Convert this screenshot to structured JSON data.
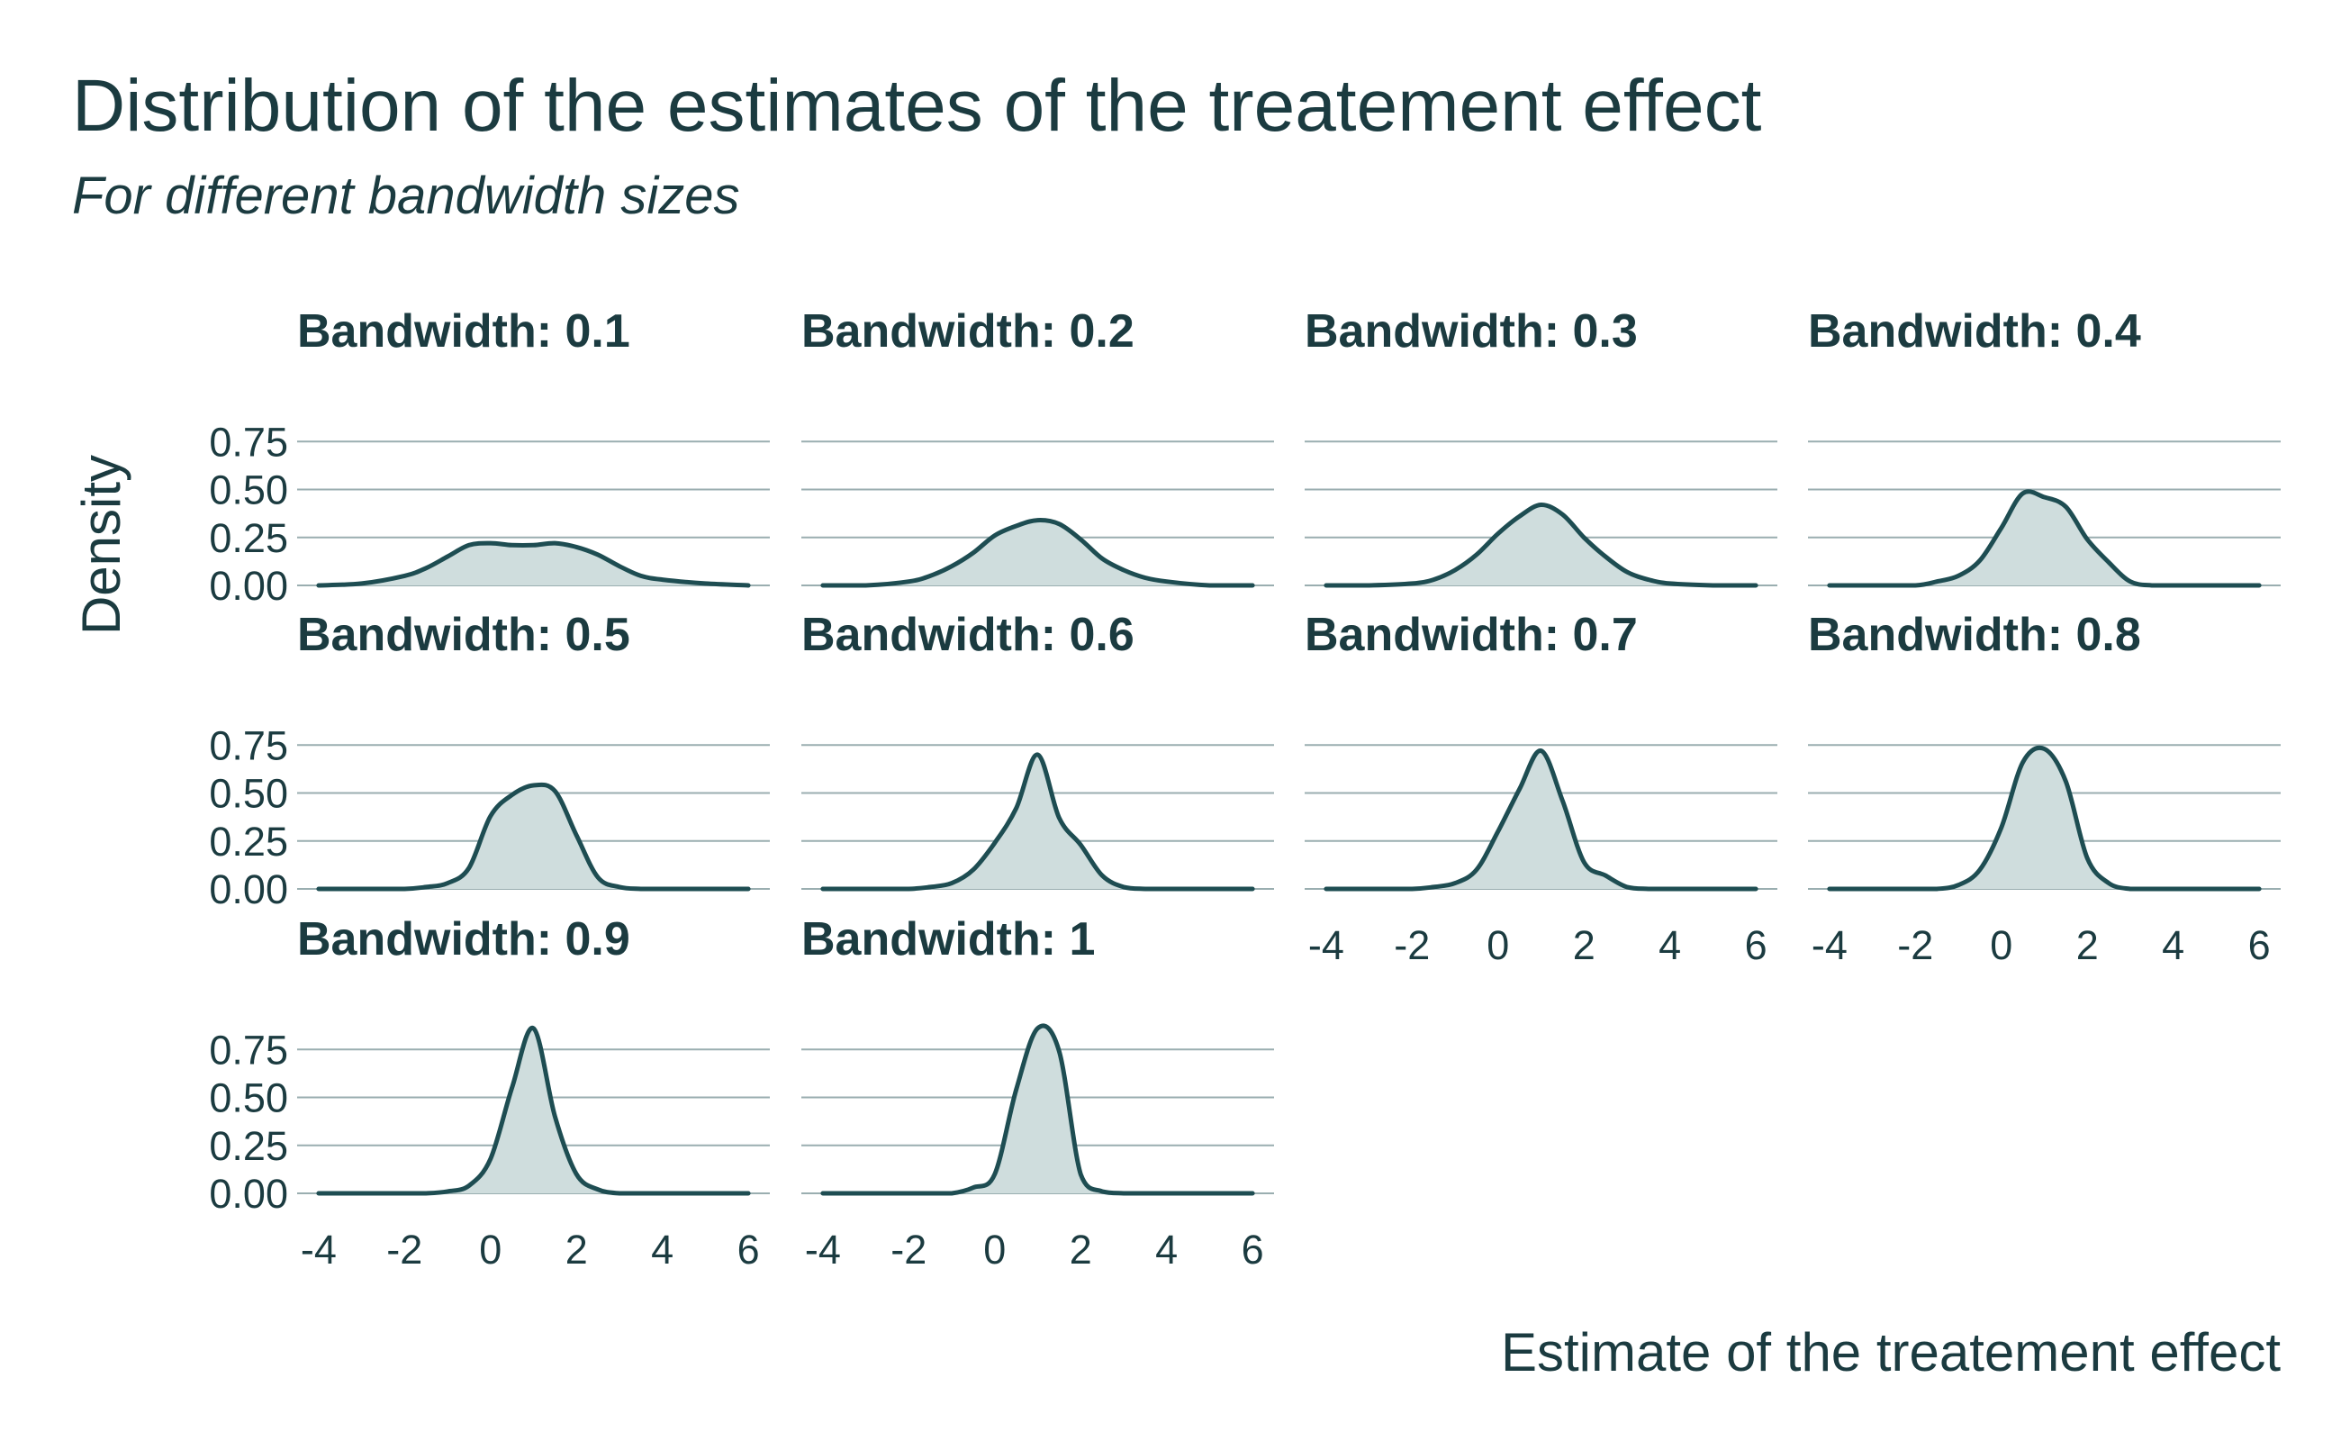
{
  "chart_data": {
    "type": "area",
    "title": "Distribution of the estimates of the treatement effect",
    "subtitle": "For different bandwidth sizes",
    "xlabel": "Estimate of the treatement effect",
    "ylabel": "Density",
    "xlim": [
      -4.5,
      6.5
    ],
    "ylim": [
      0,
      0.8
    ],
    "x_ticks": [
      "-4",
      "-2",
      "0",
      "2",
      "4",
      "6"
    ],
    "y_ticks": [
      "0.00",
      "0.25",
      "0.50",
      "0.75"
    ],
    "grid": true,
    "x": [
      -4,
      -3,
      -2,
      -1.5,
      -1,
      -0.5,
      0,
      0.5,
      1,
      1.5,
      2,
      2.5,
      3,
      3.5,
      4,
      5,
      6
    ],
    "series": [
      {
        "name": "Bandwidth: 0.1",
        "values": [
          0.0,
          0.01,
          0.05,
          0.09,
          0.15,
          0.21,
          0.22,
          0.21,
          0.21,
          0.22,
          0.2,
          0.16,
          0.1,
          0.05,
          0.03,
          0.01,
          0.0
        ]
      },
      {
        "name": "Bandwidth: 0.2",
        "values": [
          0.0,
          0.0,
          0.02,
          0.05,
          0.1,
          0.17,
          0.26,
          0.31,
          0.34,
          0.32,
          0.24,
          0.14,
          0.08,
          0.04,
          0.02,
          0.0,
          0.0
        ]
      },
      {
        "name": "Bandwidth: 0.3",
        "values": [
          0.0,
          0.0,
          0.01,
          0.03,
          0.08,
          0.16,
          0.27,
          0.36,
          0.42,
          0.37,
          0.25,
          0.15,
          0.07,
          0.03,
          0.01,
          0.0,
          0.0
        ]
      },
      {
        "name": "Bandwidth: 0.4",
        "values": [
          0.0,
          0.0,
          0.0,
          0.02,
          0.05,
          0.13,
          0.3,
          0.48,
          0.46,
          0.41,
          0.24,
          0.12,
          0.02,
          0.0,
          0.0,
          0.0,
          0.0
        ]
      },
      {
        "name": "Bandwidth: 0.5",
        "values": [
          0.0,
          0.0,
          0.0,
          0.01,
          0.03,
          0.11,
          0.38,
          0.49,
          0.54,
          0.51,
          0.28,
          0.06,
          0.01,
          0.0,
          0.0,
          0.0,
          0.0
        ]
      },
      {
        "name": "Bandwidth: 0.6",
        "values": [
          0.0,
          0.0,
          0.0,
          0.01,
          0.03,
          0.1,
          0.24,
          0.42,
          0.7,
          0.37,
          0.23,
          0.07,
          0.01,
          0.0,
          0.0,
          0.0,
          0.0
        ]
      },
      {
        "name": "Bandwidth: 0.7",
        "values": [
          0.0,
          0.0,
          0.0,
          0.01,
          0.03,
          0.1,
          0.3,
          0.52,
          0.72,
          0.46,
          0.14,
          0.07,
          0.01,
          0.0,
          0.0,
          0.0,
          0.0
        ]
      },
      {
        "name": "Bandwidth: 0.8",
        "values": [
          0.0,
          0.0,
          0.0,
          0.0,
          0.02,
          0.1,
          0.32,
          0.66,
          0.73,
          0.56,
          0.16,
          0.03,
          0.0,
          0.0,
          0.0,
          0.0,
          0.0
        ]
      },
      {
        "name": "Bandwidth: 0.9",
        "values": [
          0.0,
          0.0,
          0.0,
          0.0,
          0.01,
          0.04,
          0.18,
          0.55,
          0.86,
          0.4,
          0.1,
          0.02,
          0.0,
          0.0,
          0.0,
          0.0,
          0.0
        ]
      },
      {
        "name": "Bandwidth: 1",
        "values": [
          0.0,
          0.0,
          0.0,
          0.0,
          0.0,
          0.03,
          0.1,
          0.54,
          0.86,
          0.74,
          0.1,
          0.01,
          0.0,
          0.0,
          0.0,
          0.0,
          0.0
        ]
      }
    ]
  }
}
